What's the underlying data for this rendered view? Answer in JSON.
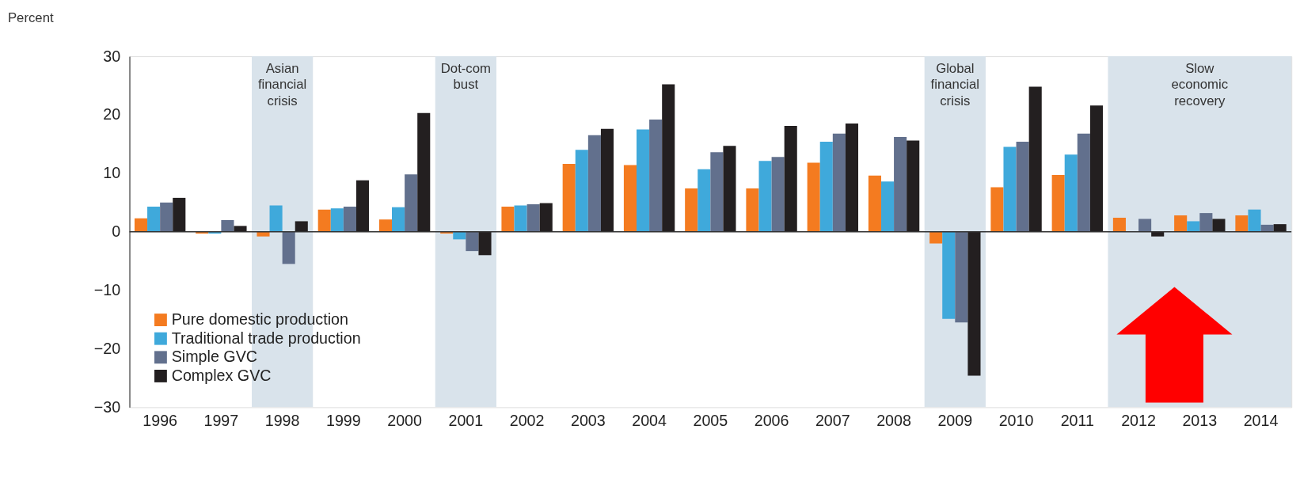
{
  "chart_data": {
    "type": "bar",
    "ylabel": "Percent",
    "categories": [
      "1996",
      "1997",
      "1998",
      "1999",
      "2000",
      "2001",
      "2002",
      "2003",
      "2004",
      "2005",
      "2006",
      "2007",
      "2008",
      "2009",
      "2010",
      "2011",
      "2012",
      "2013",
      "2014"
    ],
    "series": [
      {
        "name": "Pure domestic production",
        "color": "#f47b20",
        "values": [
          2.3,
          -0.3,
          -0.8,
          3.8,
          2.1,
          -0.3,
          4.3,
          11.6,
          11.4,
          7.4,
          7.4,
          11.8,
          9.6,
          -2.0,
          7.6,
          9.7,
          2.4,
          2.8,
          2.8
        ]
      },
      {
        "name": "Traditional trade production",
        "color": "#3fa9db",
        "values": [
          4.3,
          -0.3,
          4.5,
          4.0,
          4.2,
          -1.3,
          4.5,
          14.0,
          17.5,
          10.7,
          12.1,
          15.4,
          8.6,
          -14.9,
          14.5,
          13.2,
          0,
          1.8,
          3.8
        ]
      },
      {
        "name": "Simple GVC",
        "color": "#62708d",
        "values": [
          5.0,
          2.0,
          -5.5,
          4.3,
          9.8,
          -3.3,
          4.7,
          16.5,
          19.2,
          13.6,
          12.8,
          16.8,
          16.2,
          -15.5,
          15.4,
          16.8,
          2.2,
          3.2,
          1.2
        ]
      },
      {
        "name": "Complex GVC",
        "color": "#231f20",
        "values": [
          5.8,
          1.0,
          1.8,
          8.8,
          20.3,
          -4.0,
          4.9,
          17.6,
          25.2,
          14.7,
          18.1,
          18.5,
          15.6,
          -24.6,
          24.8,
          21.6,
          -0.8,
          2.2,
          1.3
        ]
      }
    ],
    "ylim": [
      -30,
      30
    ],
    "yticks": [
      -30,
      -20,
      -10,
      0,
      10,
      20,
      30
    ],
    "grid": false,
    "legend": "bottom left",
    "bands": [
      {
        "axis": "x",
        "from": "1998",
        "to": "1998",
        "label": "Asian financial crisis",
        "color": "#d9e3eb"
      },
      {
        "axis": "x",
        "from": "2001",
        "to": "2001",
        "label": "Dot-com bust",
        "color": "#d9e3eb"
      },
      {
        "axis": "x",
        "from": "2009",
        "to": "2009",
        "label": "Global financial crisis",
        "color": "#d9e3eb"
      },
      {
        "axis": "x",
        "from": "2012",
        "to": "2014",
        "label": "Slow economic recovery",
        "color": "#d9e3eb"
      }
    ],
    "ref_lines": [
      {
        "axis": "y",
        "value": 0,
        "color": "#333333"
      }
    ]
  }
}
